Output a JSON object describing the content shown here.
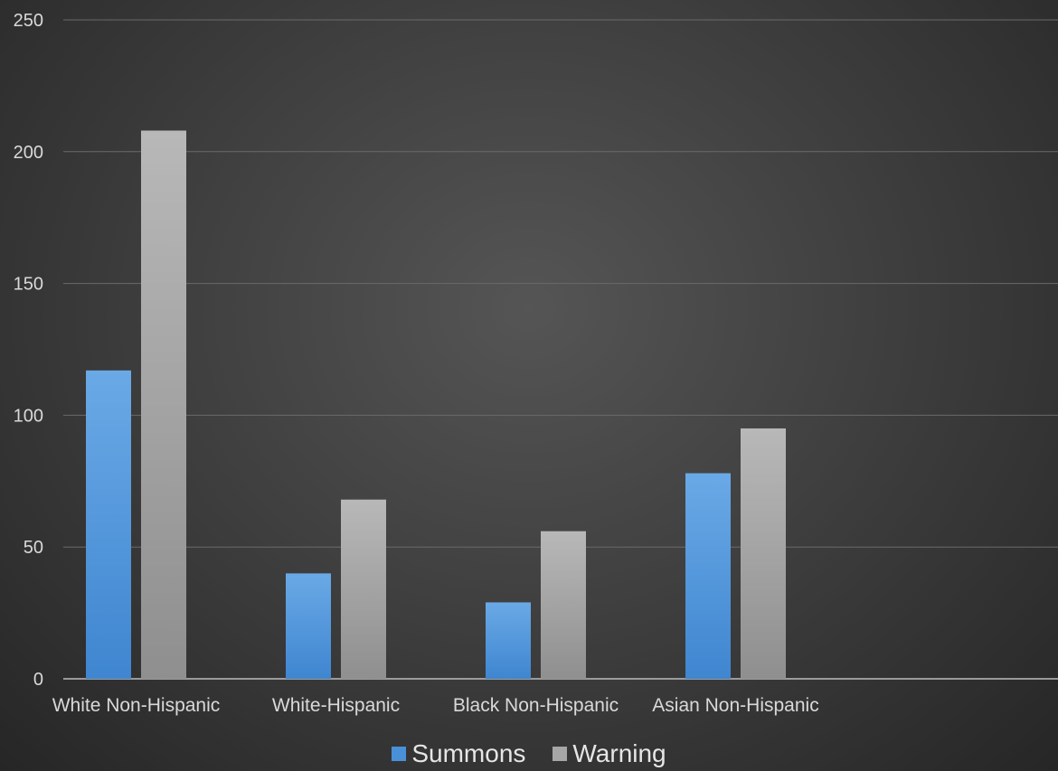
{
  "chart_data": {
    "type": "bar",
    "categories": [
      "White Non-Hispanic",
      "White-Hispanic",
      "Black Non-Hispanic",
      "Asian Non-Hispanic"
    ],
    "series": [
      {
        "name": "Summons",
        "values": [
          117,
          40,
          29,
          78
        ],
        "color": "#4a90d9"
      },
      {
        "name": "Warning",
        "values": [
          208,
          68,
          56,
          95
        ],
        "color": "#a6a6a6"
      }
    ],
    "ylim": [
      0,
      250
    ],
    "yticks": [
      0,
      50,
      100,
      150,
      200,
      250
    ],
    "grid": true,
    "legend": "bottom-center"
  }
}
